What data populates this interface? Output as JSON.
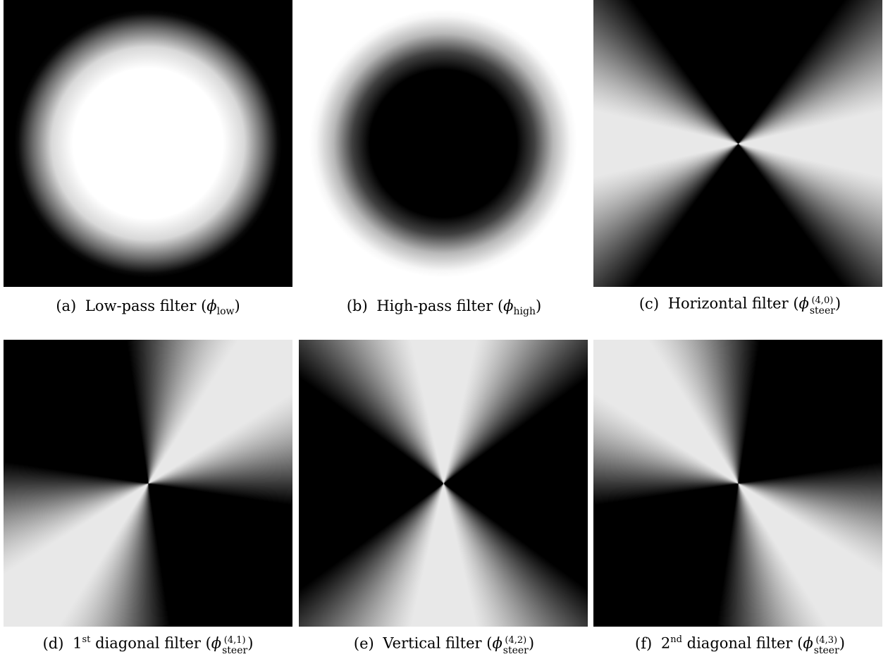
{
  "panels": [
    {
      "label": "(a)",
      "name": "Low-pass filter",
      "symbol": "ϕ",
      "sub": "low"
    },
    {
      "label": "(b)",
      "name": "High-pass filter",
      "symbol": "ϕ",
      "sub": "high"
    },
    {
      "label": "(c)",
      "name": "Horizontal filter",
      "symbol": "ϕ",
      "sup": "(4,0)",
      "sub": "steer"
    },
    {
      "label": "(d)",
      "ord_num": "1",
      "ord_sup": "st",
      "name": "diagonal filter",
      "symbol": "ϕ",
      "sup": "(4,1)",
      "sub": "steer"
    },
    {
      "label": "(e)",
      "name": "Vertical filter",
      "symbol": "ϕ",
      "sup": "(4,2)",
      "sub": "steer"
    },
    {
      "label": "(f)",
      "ord_num": "2",
      "ord_sup": "nd",
      "name": "diagonal filter",
      "symbol": "ϕ",
      "sup": "(4,3)",
      "sub": "steer"
    }
  ],
  "filter_profiles": {
    "radial": [
      {
        "kind": "low-pass",
        "center": "white",
        "edge": "black"
      },
      {
        "kind": "high-pass",
        "center": "black",
        "edge": "white"
      }
    ],
    "steerable": [
      {
        "order": 4,
        "index": 0,
        "orientation_deg": 0,
        "bright_direction": "horizontal"
      },
      {
        "order": 4,
        "index": 1,
        "orientation_deg": 45,
        "bright_direction": "diagonal up-right"
      },
      {
        "order": 4,
        "index": 2,
        "orientation_deg": 90,
        "bright_direction": "vertical"
      },
      {
        "order": 4,
        "index": 3,
        "orientation_deg": 135,
        "bright_direction": "diagonal up-left"
      }
    ]
  },
  "colors": {
    "black": "#000000",
    "white": "#ffffff",
    "light_gray": "#e8e8e8"
  }
}
